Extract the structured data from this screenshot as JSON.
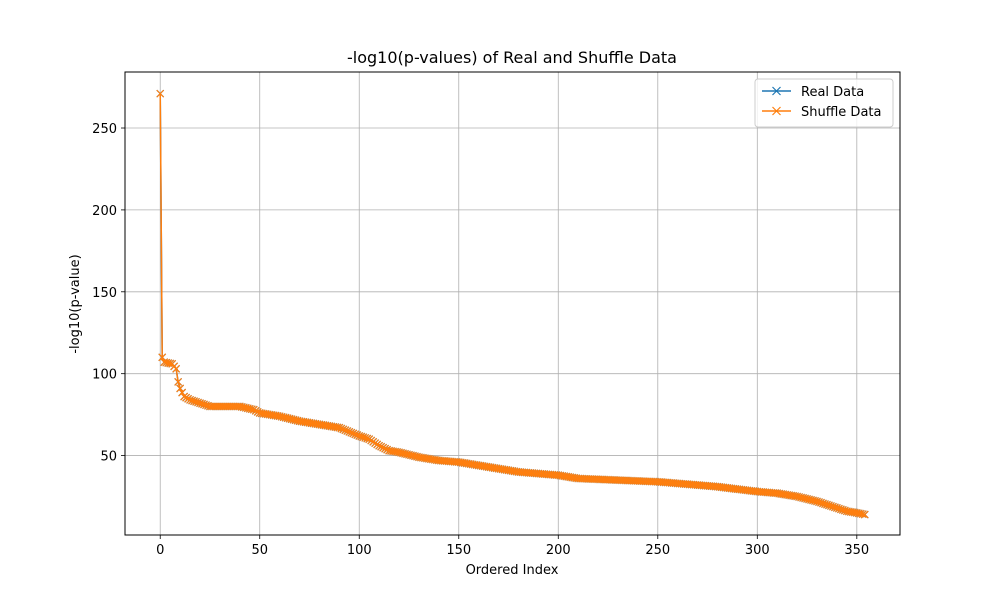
{
  "chart_data": {
    "type": "line",
    "title": "-log10(p-values) of Real and Shuffle Data",
    "xlabel": "Ordered Index",
    "ylabel": "-log10(p-value)",
    "xlim": [
      -17.7,
      371.7
    ],
    "ylim": [
      1.5,
      284.2
    ],
    "xticks": [
      "0",
      "50",
      "100",
      "150",
      "200",
      "250",
      "300",
      "350"
    ],
    "xtick_values": [
      0,
      50,
      100,
      150,
      200,
      250,
      300,
      350
    ],
    "yticks": [
      "50",
      "100",
      "150",
      "200",
      "250"
    ],
    "ytick_values": [
      50,
      100,
      150,
      200,
      250
    ],
    "grid": true,
    "legend_position": "top-right",
    "marker": "x",
    "n_points": 355,
    "curve_anchors": [
      [
        0,
        271
      ],
      [
        1,
        110
      ],
      [
        2,
        107
      ],
      [
        6,
        106
      ],
      [
        8,
        103
      ],
      [
        9,
        95
      ],
      [
        10,
        91
      ],
      [
        12,
        86
      ],
      [
        15,
        84
      ],
      [
        20,
        82
      ],
      [
        25,
        80
      ],
      [
        40,
        80
      ],
      [
        47,
        78
      ],
      [
        50,
        76
      ],
      [
        60,
        74
      ],
      [
        70,
        71
      ],
      [
        80,
        69
      ],
      [
        90,
        67
      ],
      [
        100,
        62
      ],
      [
        105,
        60
      ],
      [
        110,
        56
      ],
      [
        115,
        53
      ],
      [
        120,
        52
      ],
      [
        130,
        49
      ],
      [
        140,
        47
      ],
      [
        150,
        46
      ],
      [
        160,
        44
      ],
      [
        170,
        42
      ],
      [
        180,
        40
      ],
      [
        190,
        39
      ],
      [
        200,
        38
      ],
      [
        210,
        36
      ],
      [
        220,
        35.5
      ],
      [
        230,
        35
      ],
      [
        240,
        34.5
      ],
      [
        250,
        34
      ],
      [
        260,
        33
      ],
      [
        270,
        32
      ],
      [
        280,
        31
      ],
      [
        290,
        29.5
      ],
      [
        300,
        28
      ],
      [
        310,
        27
      ],
      [
        320,
        25
      ],
      [
        330,
        22
      ],
      [
        340,
        18
      ],
      [
        345,
        16
      ],
      [
        350,
        15
      ],
      [
        354,
        14
      ]
    ],
    "series": [
      {
        "name": "Real Data",
        "color": "#1f77b4"
      },
      {
        "name": "Shuffle Data",
        "color": "#ff7f0e"
      }
    ]
  }
}
